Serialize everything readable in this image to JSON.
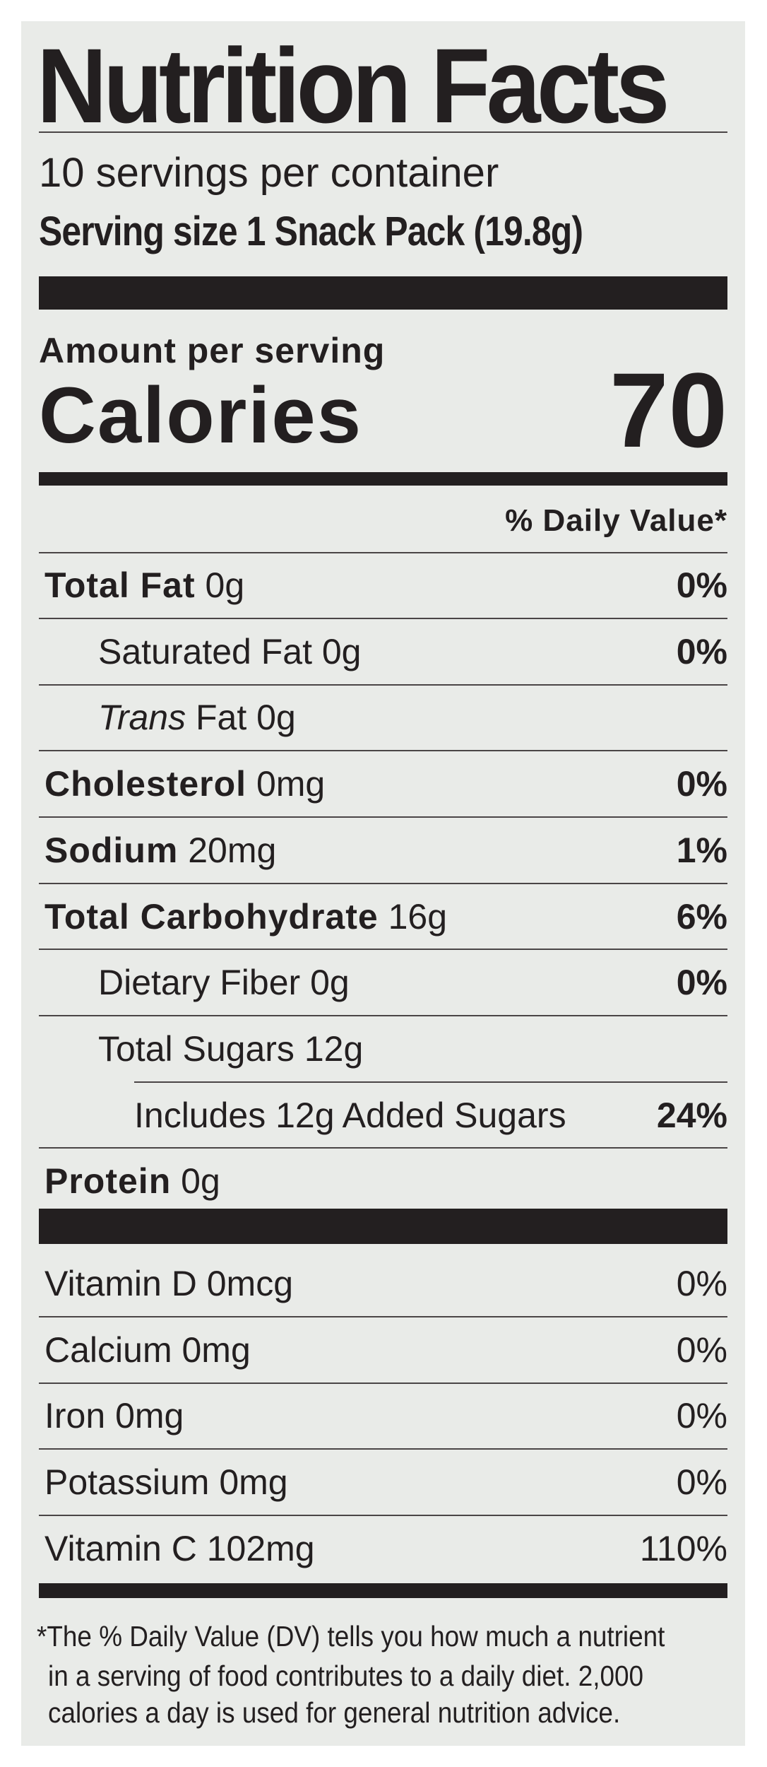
{
  "title": "Nutrition Facts",
  "servings_per_container": "10 servings per container",
  "serving_size": "Serving size 1 Snack Pack (19.8g)",
  "amount_per_serving": "Amount per serving",
  "calories_label": "Calories",
  "calories_value": "70",
  "daily_value_header": "% Daily Value*",
  "nutrients": [
    {
      "name": "Total Fat",
      "amount": "0g",
      "dv": "0%",
      "bold": true,
      "indent": 0
    },
    {
      "name": "Saturated Fat",
      "amount": "0g",
      "dv": "0%",
      "bold": false,
      "indent": 1
    },
    {
      "name": "Trans",
      "name_suffix": " Fat",
      "amount": "0g",
      "dv": "",
      "bold": false,
      "italic": true,
      "indent": 1
    },
    {
      "name": "Cholesterol",
      "amount": "0mg",
      "dv": "0%",
      "bold": true,
      "indent": 0
    },
    {
      "name": "Sodium",
      "amount": "20mg",
      "dv": "1%",
      "bold": true,
      "indent": 0
    },
    {
      "name": "Total Carbohydrate",
      "amount": "16g",
      "dv": "6%",
      "bold": true,
      "indent": 0
    },
    {
      "name": "Dietary Fiber",
      "amount": "0g",
      "dv": "0%",
      "bold": false,
      "indent": 1
    },
    {
      "name": "Total Sugars",
      "amount": "12g",
      "dv": "",
      "bold": false,
      "indent": 1
    },
    {
      "name": "Includes 12g Added Sugars",
      "amount": "",
      "dv": "24%",
      "bold": false,
      "indent": 2
    },
    {
      "name": "Protein",
      "amount": "0g",
      "dv": "",
      "bold": true,
      "indent": 0
    }
  ],
  "vitamins": [
    {
      "name": "Vitamin D",
      "amount": "0mcg",
      "dv": "0%"
    },
    {
      "name": "Calcium",
      "amount": "0mg",
      "dv": "0%"
    },
    {
      "name": "Iron",
      "amount": "0mg",
      "dv": "0%"
    },
    {
      "name": "Potassium",
      "amount": "0mg",
      "dv": "0%"
    },
    {
      "name": "Vitamin C",
      "amount": "102mg",
      "dv": "110%"
    }
  ],
  "footnote": [
    "*The % Daily Value (DV) tells you how much a nutrient",
    "in a serving of food contributes to a daily diet. 2,000",
    "calories a day is used for general nutrition advice."
  ]
}
